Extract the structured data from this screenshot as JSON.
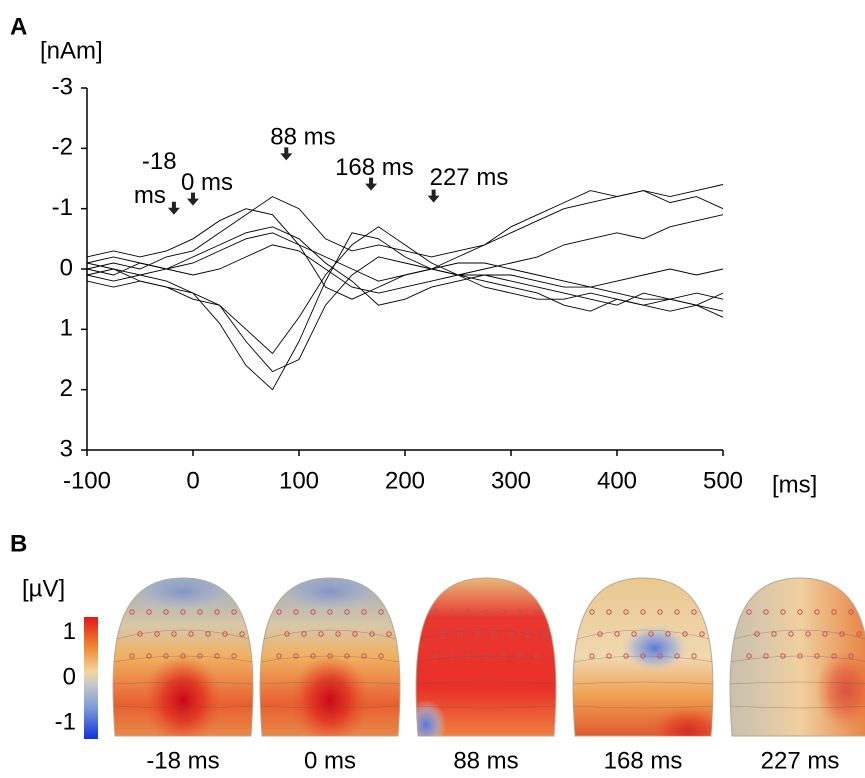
{
  "chart_data": [
    {
      "type": "line",
      "panel": "A",
      "y_label": "[nAm]",
      "x_label": "[ms]",
      "x": [
        -100,
        -75,
        -50,
        -25,
        0,
        25,
        50,
        75,
        100,
        125,
        150,
        175,
        200,
        225,
        250,
        275,
        300,
        325,
        350,
        375,
        400,
        425,
        450,
        475,
        500
      ],
      "xlim": [
        -100,
        500
      ],
      "xticks": [
        -100,
        0,
        100,
        200,
        300,
        400,
        500
      ],
      "ylim": [
        -3,
        3
      ],
      "yticks": [
        -3,
        -2,
        -1,
        0,
        1,
        2,
        3
      ],
      "y_inverted": true,
      "series": [
        {
          "color": "#000000",
          "values": [
            0,
            -0.1,
            0,
            -0.2,
            -0.3,
            -0.6,
            -0.9,
            -1.2,
            -1.0,
            -0.5,
            -0.3,
            -0.4,
            -0.3,
            -0.2,
            -0.3,
            -0.4,
            -0.6,
            -0.8,
            -1.0,
            -1.1,
            -1.2,
            -1.3,
            -1.2,
            -1.3,
            -1.4
          ]
        },
        {
          "color": "#000000",
          "values": [
            0.1,
            0.2,
            0.1,
            0.2,
            0.4,
            0.9,
            1.6,
            2.0,
            1.2,
            0.2,
            -0.6,
            -0.5,
            -0.2,
            0,
            0.1,
            0.3,
            0.4,
            0.5,
            0.5,
            0.4,
            0.5,
            0.6,
            0.5,
            0.6,
            0.7
          ]
        },
        {
          "color": "#000000",
          "values": [
            -0.2,
            -0.3,
            -0.2,
            -0.3,
            -0.5,
            -0.8,
            -1.0,
            -0.9,
            -0.4,
            0.3,
            0.5,
            0.3,
            0.1,
            0,
            -0.2,
            -0.4,
            -0.7,
            -0.9,
            -1.1,
            -1.3,
            -1.2,
            -1.3,
            -1.1,
            -1.2,
            -1.0
          ]
        },
        {
          "color": "#000000",
          "values": [
            0.2,
            0.3,
            0.2,
            0.3,
            0.5,
            0.6,
            1.0,
            1.4,
            0.8,
            0.1,
            -0.4,
            -0.7,
            -0.4,
            -0.1,
            0.1,
            0.2,
            0.3,
            0.4,
            0.6,
            0.7,
            0.5,
            0.6,
            0.7,
            0.6,
            0.8
          ]
        },
        {
          "color": "#000000",
          "values": [
            0,
            0.1,
            -0.1,
            0,
            0.1,
            0,
            -0.2,
            -0.4,
            -0.3,
            0,
            0.3,
            0.4,
            0.3,
            0.2,
            0.1,
            0,
            -0.1,
            -0.2,
            -0.4,
            -0.5,
            -0.6,
            -0.5,
            -0.7,
            -0.8,
            -0.9
          ]
        },
        {
          "color": "#000000",
          "values": [
            -0.1,
            0,
            0.1,
            0,
            -0.2,
            -0.4,
            -0.6,
            -0.7,
            -0.5,
            -0.1,
            0.2,
            0.6,
            0.5,
            0.3,
            0.2,
            0.1,
            0.1,
            0.2,
            0.3,
            0.3,
            0.2,
            0.1,
            0,
            0.1,
            0
          ]
        },
        {
          "color": "#000000",
          "values": [
            0.1,
            0,
            0.2,
            0.3,
            0.4,
            0.6,
            1.2,
            1.7,
            1.5,
            0.6,
            0.1,
            -0.2,
            -0.1,
            0,
            0.1,
            0.1,
            0.2,
            0.3,
            0.4,
            0.5,
            0.6,
            0.4,
            0.5,
            0.4,
            0.5
          ]
        },
        {
          "color": "#000000",
          "values": [
            -0.1,
            -0.2,
            -0.1,
            0,
            -0.1,
            -0.3,
            -0.5,
            -0.6,
            -0.4,
            -0.2,
            0,
            0.2,
            0.1,
            0,
            -0.1,
            -0.1,
            0,
            0.1,
            0.2,
            0.3,
            0.4,
            0.5,
            0.5,
            0.6,
            0.4
          ]
        }
      ],
      "annotations": [
        {
          "lines": [
            "-18",
            "ms"
          ],
          "x": -18,
          "y": -0.9
        },
        {
          "lines": [
            "0 ms"
          ],
          "x": 0,
          "y": -1.05
        },
        {
          "lines": [
            "88 ms"
          ],
          "x": 88,
          "y": -1.8
        },
        {
          "lines": [
            "168 ms"
          ],
          "x": 168,
          "y": -1.3
        },
        {
          "lines": [
            "227 ms"
          ],
          "x": 227,
          "y": -1.1
        }
      ]
    },
    {
      "type": "topomap",
      "panel": "B",
      "colorbar_label": "[µV]",
      "clim": [
        -1.35,
        1.35
      ],
      "cticks": [
        1,
        0,
        -1
      ],
      "maps": [
        {
          "label": "-18 ms"
        },
        {
          "label": "0 ms"
        },
        {
          "label": "88 ms"
        },
        {
          "label": "168 ms"
        },
        {
          "label": "227 ms"
        }
      ]
    }
  ]
}
